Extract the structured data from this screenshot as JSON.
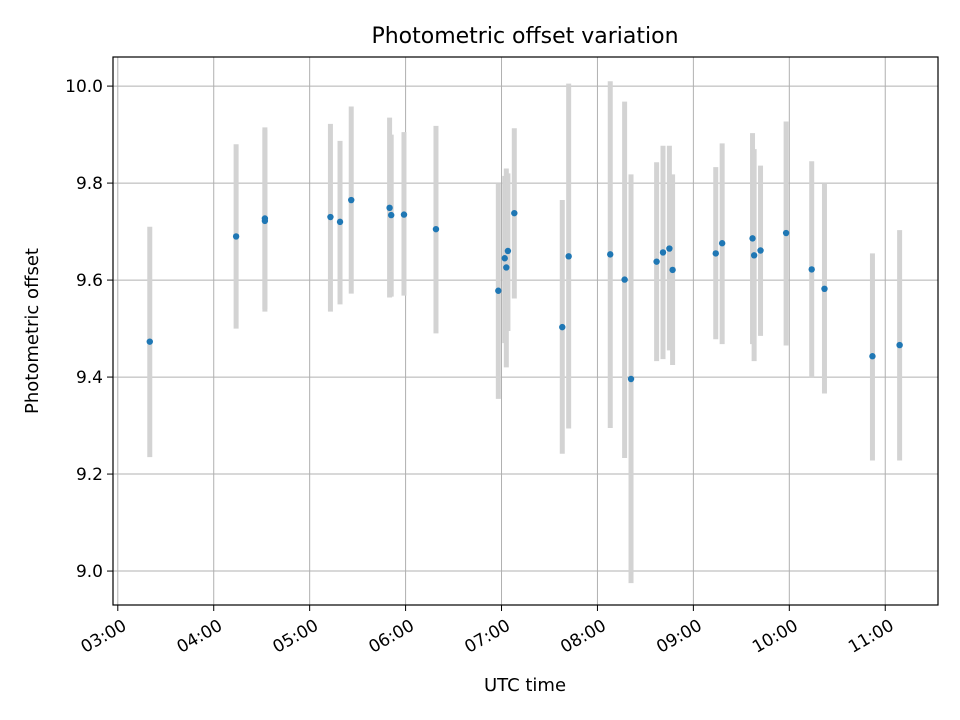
{
  "chart_data": {
    "type": "scatter",
    "title": "Photometric offset variation",
    "xlabel": "UTC time",
    "ylabel": "Photometric offset",
    "grid": true,
    "xlim": [
      "02:57",
      "11:33"
    ],
    "ylim": [
      8.93,
      10.06
    ],
    "x_ticks": [
      "03:00",
      "04:00",
      "05:00",
      "06:00",
      "07:00",
      "08:00",
      "09:00",
      "10:00",
      "11:00"
    ],
    "y_ticks": [
      9.0,
      9.2,
      9.4,
      9.6,
      9.8,
      10.0
    ],
    "point_color": "#1f77b4",
    "errorbar_color": "#d3d3d3",
    "points": [
      {
        "t": "03:20",
        "y": 9.473,
        "lo": 9.235,
        "hi": 9.71
      },
      {
        "t": "04:14",
        "y": 9.69,
        "lo": 9.5,
        "hi": 9.88
      },
      {
        "t": "04:32",
        "y": 9.722,
        "lo": 9.535,
        "hi": 9.915
      },
      {
        "t": "04:32",
        "y": 9.727,
        "lo": 9.54,
        "hi": 9.91
      },
      {
        "t": "05:13",
        "y": 9.73,
        "lo": 9.535,
        "hi": 9.922
      },
      {
        "t": "05:19",
        "y": 9.72,
        "lo": 9.55,
        "hi": 9.887
      },
      {
        "t": "05:26",
        "y": 9.765,
        "lo": 9.572,
        "hi": 9.958
      },
      {
        "t": "05:50",
        "y": 9.749,
        "lo": 9.564,
        "hi": 9.935
      },
      {
        "t": "05:51",
        "y": 9.734,
        "lo": 9.566,
        "hi": 9.9
      },
      {
        "t": "05:59",
        "y": 9.735,
        "lo": 9.568,
        "hi": 9.905
      },
      {
        "t": "06:19",
        "y": 9.705,
        "lo": 9.49,
        "hi": 9.918
      },
      {
        "t": "06:58",
        "y": 9.578,
        "lo": 9.355,
        "hi": 9.8
      },
      {
        "t": "07:02",
        "y": 9.645,
        "lo": 9.47,
        "hi": 9.815
      },
      {
        "t": "07:03",
        "y": 9.626,
        "lo": 9.42,
        "hi": 9.83
      },
      {
        "t": "07:04",
        "y": 9.66,
        "lo": 9.495,
        "hi": 9.82
      },
      {
        "t": "07:08",
        "y": 9.738,
        "lo": 9.562,
        "hi": 9.913
      },
      {
        "t": "07:38",
        "y": 9.503,
        "lo": 9.242,
        "hi": 9.765
      },
      {
        "t": "07:42",
        "y": 9.649,
        "lo": 9.294,
        "hi": 10.005
      },
      {
        "t": "08:08",
        "y": 9.653,
        "lo": 9.295,
        "hi": 10.01
      },
      {
        "t": "08:17",
        "y": 9.601,
        "lo": 9.233,
        "hi": 9.968
      },
      {
        "t": "08:21",
        "y": 9.396,
        "lo": 8.975,
        "hi": 9.818
      },
      {
        "t": "08:37",
        "y": 9.638,
        "lo": 9.433,
        "hi": 9.843
      },
      {
        "t": "08:41",
        "y": 9.657,
        "lo": 9.437,
        "hi": 9.877
      },
      {
        "t": "08:45",
        "y": 9.665,
        "lo": 9.455,
        "hi": 9.877
      },
      {
        "t": "08:47",
        "y": 9.621,
        "lo": 9.425,
        "hi": 9.818
      },
      {
        "t": "09:14",
        "y": 9.655,
        "lo": 9.478,
        "hi": 9.833
      },
      {
        "t": "09:18",
        "y": 9.676,
        "lo": 9.468,
        "hi": 9.882
      },
      {
        "t": "09:37",
        "y": 9.686,
        "lo": 9.468,
        "hi": 9.903
      },
      {
        "t": "09:38",
        "y": 9.651,
        "lo": 9.433,
        "hi": 9.87
      },
      {
        "t": "09:42",
        "y": 9.661,
        "lo": 9.485,
        "hi": 9.836
      },
      {
        "t": "09:58",
        "y": 9.697,
        "lo": 9.465,
        "hi": 9.927
      },
      {
        "t": "10:14",
        "y": 9.622,
        "lo": 9.398,
        "hi": 9.845
      },
      {
        "t": "10:22",
        "y": 9.582,
        "lo": 9.366,
        "hi": 9.8
      },
      {
        "t": "10:52",
        "y": 9.443,
        "lo": 9.228,
        "hi": 9.655
      },
      {
        "t": "11:09",
        "y": 9.466,
        "lo": 9.228,
        "hi": 9.703
      }
    ]
  }
}
